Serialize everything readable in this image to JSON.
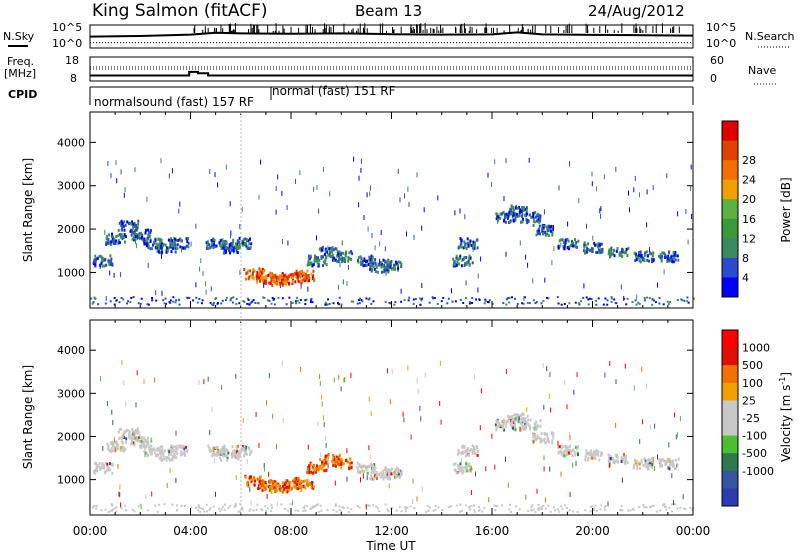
{
  "title": {
    "station": "King Salmon (fitACF)",
    "beam": "Beam 13",
    "date": "24/Aug/2012"
  },
  "colors": {
    "frame": "#000000",
    "scatter_colors_power": [
      "#0000ff",
      "#2a4bd0",
      "#3c8a62",
      "#3a9a3a",
      "#5ab040",
      "#f0a000",
      "#f07000",
      "#e04000",
      "#e00000"
    ],
    "scatter_colors_velocity": [
      "#2a3cb0",
      "#3256a0",
      "#2e7a50",
      "#4ac02e",
      "#c8c8c8",
      "#c8c8c8",
      "#f0a000",
      "#f07000",
      "#e01000",
      "#ff0000"
    ]
  },
  "top_panels": {
    "left_labels": {
      "nsky": "N.Sky",
      "freq_line1": "Freq.",
      "freq_line2": "[MHz]",
      "cpid": "CPID"
    },
    "right_labels": {
      "nsearch": "N.Search",
      "nave": "Nave"
    },
    "noise_ticks_left": {
      "top": "10^5",
      "bottom": "10^0"
    },
    "noise_ticks_right": {
      "top": "10^5",
      "bottom": "10^0"
    },
    "freq_ticks_left": {
      "top": "18",
      "bottom": "8"
    },
    "freq_ticks_right": {
      "top": "60",
      "bottom": "0"
    },
    "cpid_texts": {
      "first": "normalsound (fast) 157 RF",
      "second": "normal (fast) 151 RF"
    }
  },
  "x_axis": {
    "ticks": [
      "00:00",
      "04:00",
      "08:00",
      "12:00",
      "16:00",
      "20:00",
      "00:00"
    ],
    "label": "Time UT"
  },
  "chart_data": [
    {
      "type": "line",
      "title": "",
      "ylabel": "N.Sky",
      "y_scale": "log",
      "ylim": [
        1,
        100000
      ],
      "series": [
        {
          "name": "N.Sky",
          "x": [
            0,
            2,
            4,
            5,
            6,
            8,
            10,
            12,
            14,
            16,
            17,
            18,
            20,
            22,
            24
          ],
          "values": [
            300,
            400,
            800,
            2000,
            1500,
            1200,
            1500,
            1000,
            800,
            900,
            2500,
            900,
            700,
            600,
            500
          ]
        },
        {
          "name": "N.Search",
          "x": [
            0,
            4,
            8,
            12,
            16,
            20,
            24
          ],
          "values": [
            15,
            15,
            15,
            15,
            15,
            15,
            15
          ]
        }
      ],
      "x_unit": "hours UT",
      "xlim": [
        0,
        24
      ]
    },
    {
      "type": "line",
      "ylabel": "Freq. [MHz]",
      "ylim": [
        8,
        18
      ],
      "y2label": "Nave",
      "y2lim": [
        0,
        60
      ],
      "series": [
        {
          "name": "Freq.",
          "x": [
            0,
            3.95,
            3.95,
            4.3,
            4.3,
            4.7,
            4.7,
            24
          ],
          "values": [
            10.3,
            10.3,
            11.8,
            11.8,
            11.2,
            11.2,
            10.3,
            10.3
          ]
        },
        {
          "name": "Nave",
          "x": [
            0,
            24
          ],
          "values": [
            30,
            30
          ]
        }
      ],
      "x_unit": "hours UT",
      "xlim": [
        0,
        24
      ]
    },
    {
      "type": "scatter",
      "ylabel": "Slant Range [km]",
      "xlabel": "Time UT",
      "ylim": [
        180,
        4700
      ],
      "yticks": [
        1000,
        2000,
        3000,
        4000
      ],
      "xlim": [
        0,
        24
      ],
      "colorbar": {
        "label": "Power [dB]",
        "ticks": [
          "4",
          "8",
          "12",
          "16",
          "20",
          "24",
          "28"
        ]
      },
      "series": [
        {
          "name": "",
          "x": [
            0.5,
            1.0,
            1.5,
            2.0,
            2.5,
            3.0,
            3.5,
            5.0,
            5.5,
            6.0,
            6.5,
            7.0,
            7.5,
            8.0,
            8.5,
            9.0,
            9.5,
            10.0,
            11.0,
            11.5,
            12.0,
            14.8,
            15.0,
            16.5,
            17.0,
            17.5,
            18.0,
            19.0,
            20.0,
            21.0,
            22.0,
            23.0
          ],
          "values": [
            1300,
            1800,
            2100,
            1900,
            1700,
            1600,
            1700,
            1700,
            1600,
            1700,
            1000,
            900,
            850,
            900,
            950,
            1300,
            1500,
            1400,
            1300,
            1150,
            1200,
            1300,
            1700,
            2300,
            2450,
            2300,
            2000,
            1700,
            1600,
            1500,
            1400,
            1400
          ]
        }
      ]
    },
    {
      "type": "scatter",
      "ylabel": "Slant Range [km]",
      "xlabel": "Time UT",
      "ylim": [
        180,
        4700
      ],
      "yticks": [
        1000,
        2000,
        3000,
        4000
      ],
      "xlim": [
        0,
        24
      ],
      "colorbar": {
        "label": "Velocity [m s^-1]",
        "ticks": [
          "1000",
          "500",
          "100",
          "25",
          "-25",
          "-100",
          "-500",
          "-1000"
        ]
      },
      "series": [
        {
          "name": "",
          "x": [
            0.5,
            1.0,
            1.5,
            2.0,
            2.5,
            3.0,
            3.5,
            5.0,
            5.5,
            6.0,
            6.5,
            7.0,
            7.5,
            8.0,
            8.5,
            9.0,
            9.5,
            10.0,
            11.0,
            11.5,
            12.0,
            14.8,
            15.0,
            16.5,
            17.0,
            17.5,
            18.0,
            19.0,
            20.0,
            21.0,
            22.0,
            23.0
          ],
          "values": [
            1300,
            1800,
            2100,
            1900,
            1700,
            1600,
            1700,
            1700,
            1600,
            1700,
            1000,
            900,
            850,
            900,
            950,
            1300,
            1500,
            1400,
            1300,
            1150,
            1200,
            1300,
            1700,
            2300,
            2450,
            2300,
            2000,
            1700,
            1600,
            1500,
            1400,
            1400
          ]
        }
      ]
    }
  ],
  "colorbars": {
    "power": {
      "label": "Power [dB]",
      "ticks": [
        "4",
        "8",
        "12",
        "16",
        "20",
        "24",
        "28"
      ]
    },
    "velocity": {
      "label_main": "Velocity [m s",
      "label_sup": "-1",
      "label_end": "]",
      "ticks": [
        "1000",
        "500",
        "100",
        "25",
        "-25",
        "-100",
        "-500",
        "-1000"
      ]
    }
  },
  "slant_axis": {
    "label": "Slant Range [km]",
    "ticks": [
      "1000",
      "2000",
      "3000",
      "4000"
    ]
  }
}
